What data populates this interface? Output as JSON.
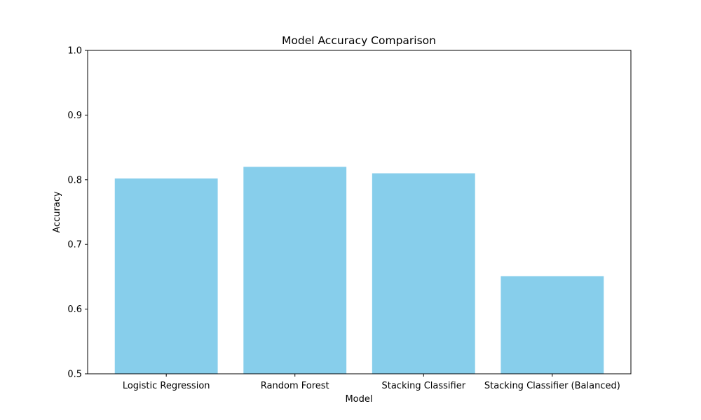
{
  "chart_data": {
    "type": "bar",
    "title": "Model Accuracy Comparison",
    "xlabel": "Model",
    "ylabel": "Accuracy",
    "categories": [
      "Logistic Regression",
      "Random Forest",
      "Stacking Classifier",
      "Stacking Classifier (Balanced)"
    ],
    "values": [
      0.802,
      0.82,
      0.81,
      0.651
    ],
    "ylim": [
      0.5,
      1.0
    ],
    "yticks": [
      "0.5",
      "0.6",
      "0.7",
      "0.8",
      "0.9",
      "1.0"
    ],
    "grid": false,
    "legend": "none",
    "bar_color": "#87ceeb"
  }
}
